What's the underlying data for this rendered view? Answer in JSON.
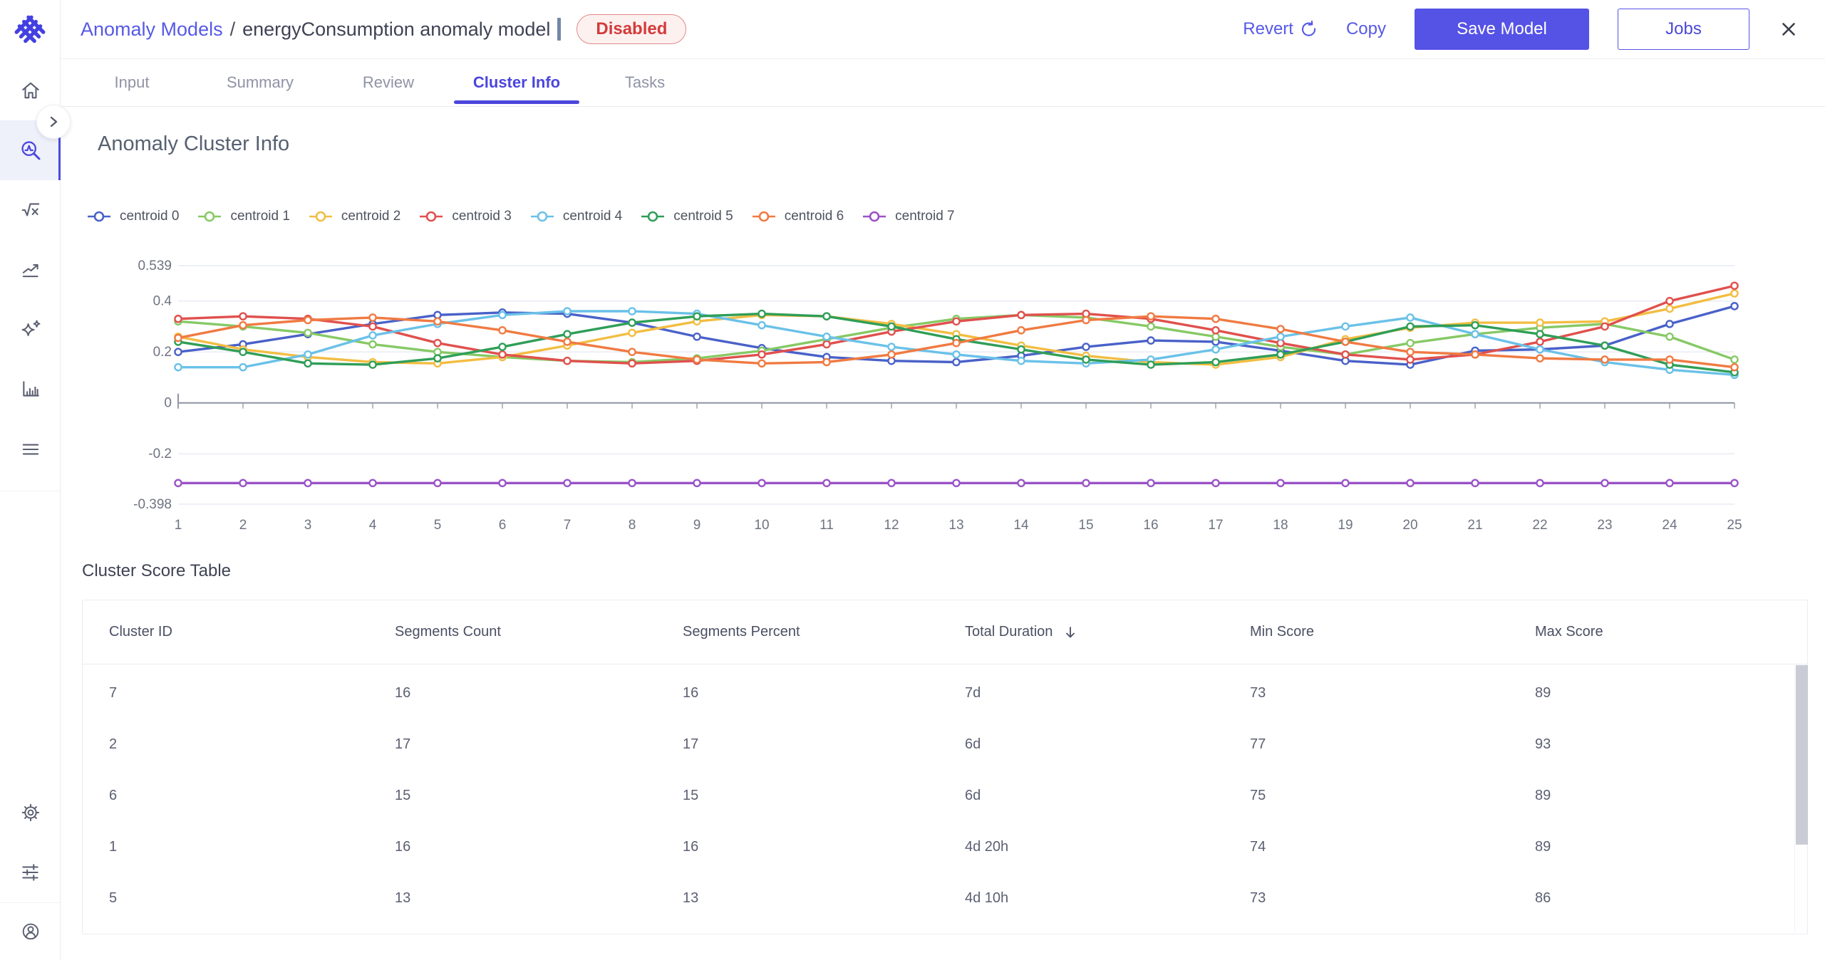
{
  "app": {
    "accent_color": "#5552e6"
  },
  "header": {
    "breadcrumb": {
      "root": "Anomaly Models",
      "separator": "/",
      "current": "energyConsumption anomaly model"
    },
    "status_badge": {
      "label": "Disabled",
      "text_color": "#d23b3b",
      "bg_color": "#fdf1f0",
      "border_color": "#e08a8a"
    },
    "actions": {
      "revert": "Revert",
      "copy": "Copy",
      "save": "Save Model",
      "jobs": "Jobs"
    }
  },
  "tabs": {
    "items": [
      "Input",
      "Summary",
      "Review",
      "Cluster Info",
      "Tasks"
    ],
    "active": "Cluster Info"
  },
  "sidebar": {
    "icons": [
      "home",
      "anomaly-search",
      "formula",
      "trend-line",
      "sparkles",
      "bar-chart",
      "menu",
      "settings",
      "sliders",
      "account"
    ],
    "active": "anomaly-search"
  },
  "page": {
    "title": "Anomaly Cluster Info"
  },
  "chart_data": {
    "type": "line",
    "title": "",
    "xlabel": "",
    "ylabel": "",
    "x": [
      1,
      2,
      3,
      4,
      5,
      6,
      7,
      8,
      9,
      10,
      11,
      12,
      13,
      14,
      15,
      16,
      17,
      18,
      19,
      20,
      21,
      22,
      23,
      24,
      25
    ],
    "ylim": [
      -0.398,
      0.539
    ],
    "y_ticks": [
      {
        "value": 0.539,
        "label": "0.539"
      },
      {
        "value": 0.4,
        "label": "0.4"
      },
      {
        "value": 0.2,
        "label": "0.2"
      },
      {
        "value": 0,
        "label": "0"
      },
      {
        "value": -0.2,
        "label": "-0.2"
      },
      {
        "value": -0.398,
        "label": "-0.398"
      }
    ],
    "grid": "horizontal",
    "legend_position": "top-left",
    "series": [
      {
        "name": "centroid 0",
        "color": "#4961c8",
        "values": [
          0.2,
          0.23,
          0.27,
          0.31,
          0.345,
          0.355,
          0.35,
          0.315,
          0.26,
          0.215,
          0.18,
          0.165,
          0.16,
          0.185,
          0.22,
          0.245,
          0.24,
          0.205,
          0.165,
          0.15,
          0.205,
          0.21,
          0.225,
          0.31,
          0.38
        ]
      },
      {
        "name": "centroid 1",
        "color": "#86c965",
        "values": [
          0.32,
          0.3,
          0.275,
          0.23,
          0.2,
          0.18,
          0.165,
          0.16,
          0.175,
          0.205,
          0.25,
          0.295,
          0.33,
          0.345,
          0.335,
          0.3,
          0.26,
          0.22,
          0.19,
          0.235,
          0.27,
          0.295,
          0.31,
          0.26,
          0.17
        ]
      },
      {
        "name": "centroid 2",
        "color": "#f2bd42",
        "values": [
          0.26,
          0.21,
          0.18,
          0.16,
          0.155,
          0.18,
          0.225,
          0.275,
          0.32,
          0.345,
          0.34,
          0.31,
          0.27,
          0.225,
          0.185,
          0.16,
          0.15,
          0.18,
          0.25,
          0.295,
          0.315,
          0.315,
          0.32,
          0.37,
          0.43
        ]
      },
      {
        "name": "centroid 3",
        "color": "#e0504d",
        "values": [
          0.33,
          0.34,
          0.33,
          0.3,
          0.235,
          0.19,
          0.165,
          0.155,
          0.165,
          0.19,
          0.23,
          0.28,
          0.32,
          0.345,
          0.35,
          0.33,
          0.285,
          0.235,
          0.19,
          0.17,
          0.19,
          0.24,
          0.3,
          0.4,
          0.46
        ]
      },
      {
        "name": "centroid 4",
        "color": "#6ac1e8",
        "values": [
          0.14,
          0.14,
          0.19,
          0.265,
          0.31,
          0.345,
          0.36,
          0.36,
          0.35,
          0.305,
          0.26,
          0.22,
          0.19,
          0.165,
          0.155,
          0.17,
          0.21,
          0.26,
          0.3,
          0.335,
          0.27,
          0.21,
          0.16,
          0.13,
          0.11
        ]
      },
      {
        "name": "centroid 5",
        "color": "#2f9e57",
        "values": [
          0.24,
          0.2,
          0.155,
          0.15,
          0.175,
          0.22,
          0.27,
          0.315,
          0.34,
          0.35,
          0.34,
          0.3,
          0.25,
          0.21,
          0.17,
          0.15,
          0.16,
          0.19,
          0.24,
          0.3,
          0.305,
          0.27,
          0.225,
          0.15,
          0.12
        ]
      },
      {
        "name": "centroid 6",
        "color": "#f07a42",
        "values": [
          0.255,
          0.305,
          0.325,
          0.335,
          0.32,
          0.285,
          0.24,
          0.2,
          0.17,
          0.155,
          0.16,
          0.19,
          0.235,
          0.285,
          0.325,
          0.34,
          0.33,
          0.29,
          0.24,
          0.2,
          0.19,
          0.175,
          0.17,
          0.17,
          0.14
        ]
      },
      {
        "name": "centroid 7",
        "color": "#9a52c7",
        "values": [
          -0.315,
          -0.315,
          -0.315,
          -0.315,
          -0.315,
          -0.315,
          -0.315,
          -0.315,
          -0.315,
          -0.315,
          -0.315,
          -0.315,
          -0.315,
          -0.315,
          -0.315,
          -0.315,
          -0.315,
          -0.315,
          -0.315,
          -0.315,
          -0.315,
          -0.315,
          -0.315,
          -0.315,
          -0.315
        ]
      }
    ]
  },
  "table": {
    "title": "Cluster Score Table",
    "columns": [
      "Cluster ID",
      "Segments Count",
      "Segments Percent",
      "Total Duration",
      "Min Score",
      "Max Score"
    ],
    "sorted_column": "Total Duration",
    "sort_direction": "desc",
    "rows": [
      [
        "7",
        "16",
        "16",
        "7d",
        "73",
        "89"
      ],
      [
        "2",
        "17",
        "17",
        "6d",
        "77",
        "93"
      ],
      [
        "6",
        "15",
        "15",
        "6d",
        "75",
        "89"
      ],
      [
        "1",
        "16",
        "16",
        "4d 20h",
        "74",
        "89"
      ],
      [
        "5",
        "13",
        "13",
        "4d 10h",
        "73",
        "86"
      ]
    ]
  }
}
